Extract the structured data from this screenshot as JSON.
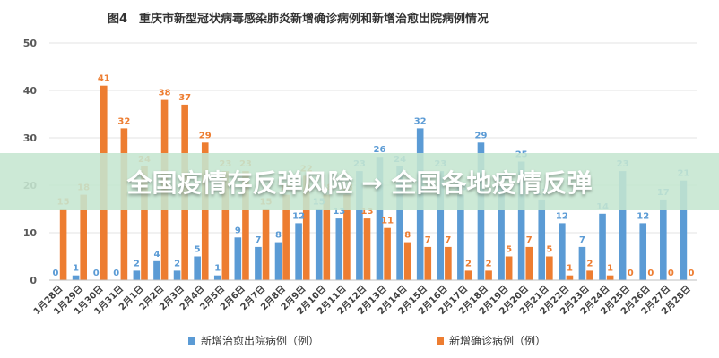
{
  "chart_data": {
    "type": "bar",
    "title": "图4　重庆市新型冠状病毒感染肺炎新增确诊病例和新增治愈出院病例情况",
    "categories": [
      "1月28日",
      "1月29日",
      "1月30日",
      "1月31日",
      "2月1日",
      "2月2日",
      "2月3日",
      "2月4日",
      "2月5日",
      "2月6日",
      "2月7日",
      "2月8日",
      "2月9日",
      "2月10日",
      "2月11日",
      "2月12日",
      "2月13日",
      "2月14日",
      "2月15日",
      "2月16日",
      "2月17日",
      "2月18日",
      "2月19日",
      "2月20日",
      "2月21日",
      "2月22日",
      "2月23日",
      "2月24日",
      "2月25日",
      "2月26日",
      "2月27日",
      "2月28日"
    ],
    "series": [
      {
        "name": "新增确诊病例（例）",
        "color": "#ED7D31",
        "values": [
          15,
          18,
          41,
          32,
          24,
          38,
          37,
          29,
          23,
          23,
          15,
          18,
          22,
          18,
          18,
          13,
          11,
          8,
          7,
          7,
          2,
          2,
          5,
          7,
          5,
          1,
          2,
          1,
          0,
          0,
          0,
          0
        ]
      },
      {
        "name": "新增治愈出院病例（例）",
        "color": "#5B9BD5",
        "values": [
          0,
          1,
          0,
          0,
          2,
          4,
          2,
          5,
          1,
          9,
          7,
          8,
          12,
          15,
          13,
          23,
          26,
          24,
          32,
          23,
          18,
          29,
          20,
          25,
          17,
          12,
          7,
          14,
          23,
          12,
          17,
          21
        ]
      }
    ],
    "ylim": [
      0,
      50
    ],
    "yticks": [
      0,
      10,
      20,
      30,
      40,
      50
    ],
    "grid": true,
    "legend": "bottom"
  },
  "overlay": {
    "text": "全国疫情存反弹风险 → 全国各地疫情反弹"
  }
}
